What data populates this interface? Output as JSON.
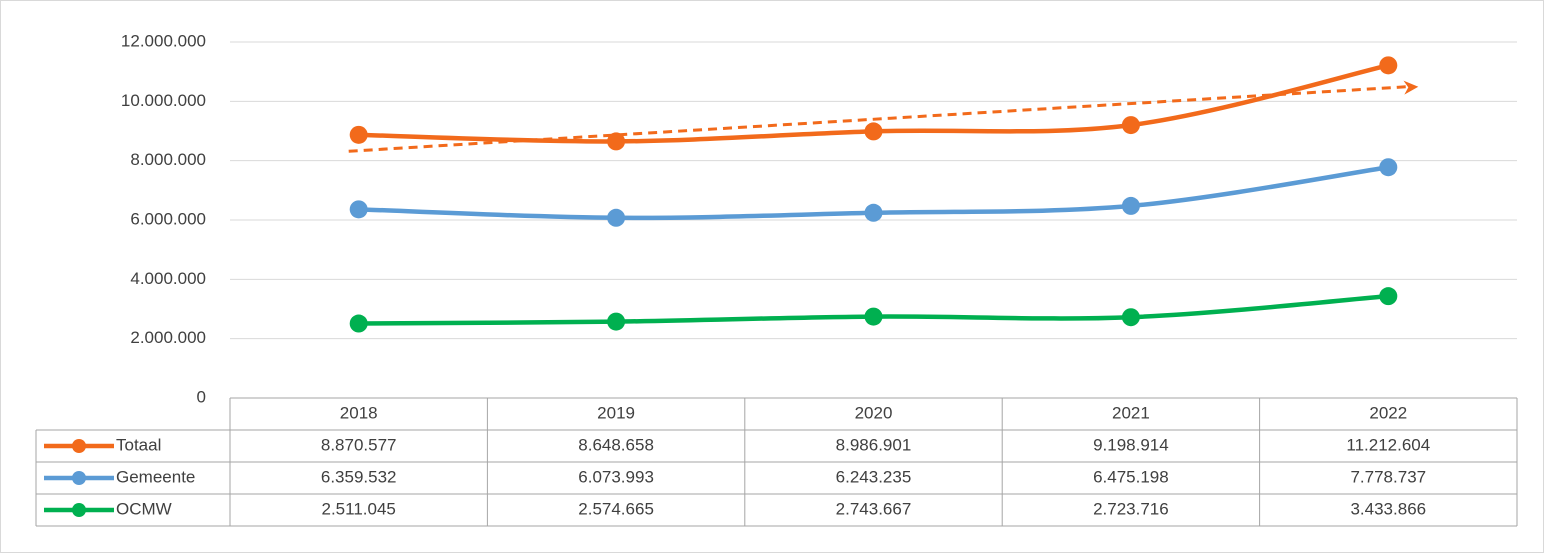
{
  "chart_data": {
    "type": "line",
    "categories": [
      "2018",
      "2019",
      "2020",
      "2021",
      "2022"
    ],
    "series": [
      {
        "name": "Totaal",
        "color": "#f26a1b",
        "trendline": "linear",
        "values": [
          8870577,
          8648658,
          8986901,
          9198914,
          11212604
        ],
        "value_labels": [
          "8.870.577",
          "8.648.658",
          "8.986.901",
          "9.198.914",
          "11.212.604"
        ]
      },
      {
        "name": "Gemeente",
        "color": "#5b9bd5",
        "values": [
          6359532,
          6073993,
          6243235,
          6475198,
          7778737
        ],
        "value_labels": [
          "6.359.532",
          "6.073.993",
          "6.243.235",
          "6.475.198",
          "7.778.737"
        ]
      },
      {
        "name": "OCMW",
        "color": "#00b050",
        "values": [
          2511045,
          2574665,
          2743667,
          2723716,
          3433866
        ],
        "value_labels": [
          "2.511.045",
          "2.574.665",
          "2.743.667",
          "2.723.716",
          "3.433.866"
        ]
      }
    ],
    "ylim": [
      0,
      12000000
    ],
    "yticks": [
      0,
      {
        "value": 2000000,
        "label": "2.000.000"
      },
      {
        "value": 4000000,
        "label": "4.000.000"
      },
      {
        "value": 6000000,
        "label": "6.000.000"
      },
      {
        "value": 8000000,
        "label": "8.000.000"
      },
      {
        "value": 10000000,
        "label": "10.000.000"
      },
      {
        "value": 12000000,
        "label": "12.000.000"
      }
    ],
    "grid": true,
    "data_table": true
  }
}
